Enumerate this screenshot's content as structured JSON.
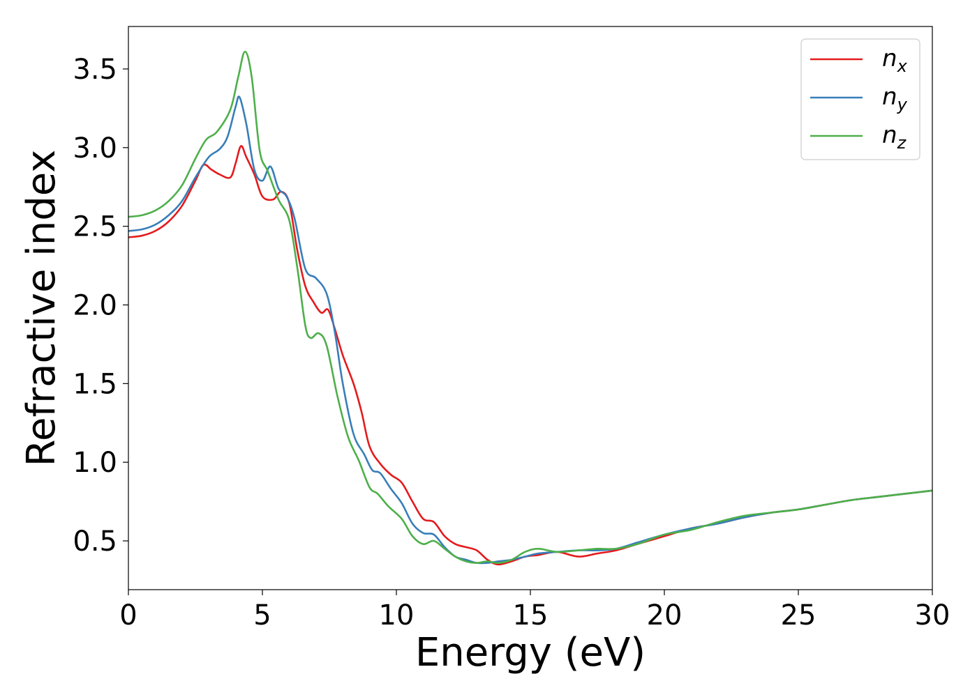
{
  "chart_data": {
    "type": "line",
    "title": "",
    "xlabel": "Energy (eV)",
    "ylabel": "Refractive index",
    "xlim": [
      0,
      30
    ],
    "ylim": [
      0.19,
      3.77
    ],
    "xticks": [
      0,
      5,
      10,
      15,
      20,
      25,
      30
    ],
    "yticks": [
      0.5,
      1.0,
      1.5,
      2.0,
      2.5,
      3.0,
      3.5
    ],
    "xtick_labels": [
      "0",
      "5",
      "10",
      "15",
      "20",
      "25",
      "30"
    ],
    "ytick_labels": [
      "0.5",
      "1.0",
      "1.5",
      "2.0",
      "2.5",
      "3.0",
      "3.5"
    ],
    "grid": false,
    "legend_position": "top-right",
    "series": [
      {
        "name": "n_x",
        "label_main": "n",
        "label_sub": "x",
        "color": "#e41a1c",
        "points": [
          [
            0,
            2.43
          ],
          [
            0.5,
            2.44
          ],
          [
            1,
            2.47
          ],
          [
            1.5,
            2.53
          ],
          [
            2,
            2.63
          ],
          [
            2.5,
            2.79
          ],
          [
            2.8,
            2.89
          ],
          [
            3.1,
            2.86
          ],
          [
            3.4,
            2.83
          ],
          [
            3.8,
            2.81
          ],
          [
            4.0,
            2.9
          ],
          [
            4.2,
            3.01
          ],
          [
            4.4,
            2.94
          ],
          [
            4.7,
            2.83
          ],
          [
            5.0,
            2.69
          ],
          [
            5.4,
            2.67
          ],
          [
            5.7,
            2.72
          ],
          [
            6.0,
            2.65
          ],
          [
            6.3,
            2.35
          ],
          [
            6.6,
            2.12
          ],
          [
            6.9,
            2.02
          ],
          [
            7.2,
            1.95
          ],
          [
            7.45,
            1.97
          ],
          [
            7.7,
            1.85
          ],
          [
            8.0,
            1.68
          ],
          [
            8.4,
            1.5
          ],
          [
            8.7,
            1.32
          ],
          [
            9.0,
            1.1
          ],
          [
            9.4,
            0.99
          ],
          [
            9.8,
            0.92
          ],
          [
            10.2,
            0.87
          ],
          [
            10.6,
            0.75
          ],
          [
            11.0,
            0.64
          ],
          [
            11.4,
            0.62
          ],
          [
            11.8,
            0.53
          ],
          [
            12.2,
            0.48
          ],
          [
            12.6,
            0.46
          ],
          [
            13.0,
            0.44
          ],
          [
            13.4,
            0.38
          ],
          [
            13.8,
            0.35
          ],
          [
            14.3,
            0.37
          ],
          [
            14.8,
            0.4
          ],
          [
            15.3,
            0.41
          ],
          [
            16.0,
            0.43
          ],
          [
            16.8,
            0.4
          ],
          [
            17.5,
            0.42
          ],
          [
            18.2,
            0.44
          ],
          [
            19.0,
            0.48
          ],
          [
            20.0,
            0.53
          ],
          [
            21.0,
            0.58
          ],
          [
            22.0,
            0.61
          ],
          [
            23.0,
            0.65
          ],
          [
            24.0,
            0.68
          ],
          [
            25.0,
            0.7
          ],
          [
            26.0,
            0.73
          ],
          [
            27.0,
            0.76
          ],
          [
            28.0,
            0.78
          ],
          [
            29.0,
            0.8
          ],
          [
            30.0,
            0.82
          ]
        ]
      },
      {
        "name": "n_y",
        "label_main": "n",
        "label_sub": "y",
        "color": "#377eb8",
        "points": [
          [
            0,
            2.47
          ],
          [
            0.5,
            2.48
          ],
          [
            1,
            2.51
          ],
          [
            1.5,
            2.57
          ],
          [
            2,
            2.66
          ],
          [
            2.5,
            2.81
          ],
          [
            3.0,
            2.94
          ],
          [
            3.4,
            2.99
          ],
          [
            3.7,
            3.07
          ],
          [
            4.0,
            3.26
          ],
          [
            4.15,
            3.32
          ],
          [
            4.4,
            3.15
          ],
          [
            4.7,
            2.86
          ],
          [
            5.0,
            2.79
          ],
          [
            5.3,
            2.88
          ],
          [
            5.6,
            2.74
          ],
          [
            5.9,
            2.69
          ],
          [
            6.2,
            2.55
          ],
          [
            6.6,
            2.23
          ],
          [
            7.0,
            2.17
          ],
          [
            7.4,
            2.07
          ],
          [
            7.7,
            1.83
          ],
          [
            8.0,
            1.5
          ],
          [
            8.4,
            1.18
          ],
          [
            8.8,
            1.05
          ],
          [
            9.1,
            0.95
          ],
          [
            9.4,
            0.93
          ],
          [
            9.8,
            0.83
          ],
          [
            10.2,
            0.74
          ],
          [
            10.6,
            0.61
          ],
          [
            11.0,
            0.55
          ],
          [
            11.4,
            0.54
          ],
          [
            11.8,
            0.46
          ],
          [
            12.2,
            0.4
          ],
          [
            12.6,
            0.38
          ],
          [
            13.0,
            0.36
          ],
          [
            13.4,
            0.36
          ],
          [
            13.8,
            0.37
          ],
          [
            14.3,
            0.38
          ],
          [
            14.8,
            0.4
          ],
          [
            15.3,
            0.42
          ],
          [
            16.0,
            0.43
          ],
          [
            16.8,
            0.44
          ],
          [
            17.5,
            0.44
          ],
          [
            18.2,
            0.45
          ],
          [
            19.0,
            0.49
          ],
          [
            20.0,
            0.54
          ],
          [
            21.0,
            0.58
          ],
          [
            22.0,
            0.61
          ],
          [
            23.0,
            0.65
          ],
          [
            24.0,
            0.68
          ],
          [
            25.0,
            0.7
          ],
          [
            26.0,
            0.73
          ],
          [
            27.0,
            0.76
          ],
          [
            28.0,
            0.78
          ],
          [
            29.0,
            0.8
          ],
          [
            30.0,
            0.82
          ]
        ]
      },
      {
        "name": "n_z",
        "label_main": "n",
        "label_sub": "z",
        "color": "#4daf4a",
        "points": [
          [
            0,
            2.56
          ],
          [
            0.5,
            2.57
          ],
          [
            1,
            2.6
          ],
          [
            1.5,
            2.66
          ],
          [
            2,
            2.76
          ],
          [
            2.5,
            2.93
          ],
          [
            2.9,
            3.05
          ],
          [
            3.3,
            3.1
          ],
          [
            3.8,
            3.24
          ],
          [
            4.1,
            3.45
          ],
          [
            4.35,
            3.61
          ],
          [
            4.6,
            3.45
          ],
          [
            4.9,
            2.98
          ],
          [
            5.2,
            2.85
          ],
          [
            5.6,
            2.67
          ],
          [
            6.0,
            2.54
          ],
          [
            6.3,
            2.24
          ],
          [
            6.6,
            1.87
          ],
          [
            6.8,
            1.79
          ],
          [
            7.1,
            1.82
          ],
          [
            7.4,
            1.74
          ],
          [
            7.8,
            1.42
          ],
          [
            8.2,
            1.16
          ],
          [
            8.6,
            1.01
          ],
          [
            9.0,
            0.84
          ],
          [
            9.3,
            0.8
          ],
          [
            9.7,
            0.72
          ],
          [
            10.2,
            0.64
          ],
          [
            10.6,
            0.53
          ],
          [
            11.0,
            0.48
          ],
          [
            11.4,
            0.5
          ],
          [
            11.8,
            0.45
          ],
          [
            12.2,
            0.4
          ],
          [
            12.6,
            0.37
          ],
          [
            13.0,
            0.36
          ],
          [
            13.4,
            0.37
          ],
          [
            13.8,
            0.36
          ],
          [
            14.3,
            0.38
          ],
          [
            14.8,
            0.43
          ],
          [
            15.3,
            0.45
          ],
          [
            16.0,
            0.43
          ],
          [
            16.8,
            0.44
          ],
          [
            17.5,
            0.45
          ],
          [
            18.2,
            0.45
          ],
          [
            19.0,
            0.48
          ],
          [
            20.0,
            0.54
          ],
          [
            21.0,
            0.57
          ],
          [
            22.0,
            0.62
          ],
          [
            23.0,
            0.66
          ],
          [
            24.0,
            0.68
          ],
          [
            25.0,
            0.7
          ],
          [
            26.0,
            0.73
          ],
          [
            27.0,
            0.76
          ],
          [
            28.0,
            0.78
          ],
          [
            29.0,
            0.8
          ],
          [
            30.0,
            0.82
          ]
        ]
      }
    ]
  }
}
